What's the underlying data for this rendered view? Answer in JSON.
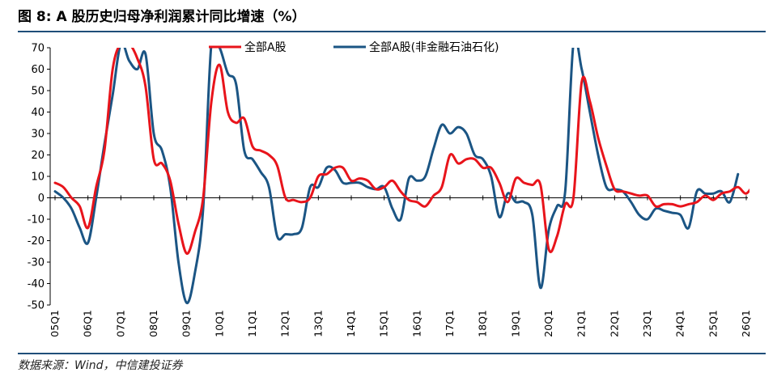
{
  "title": "图 8: A 股历史归母净利润累计同比增速（%）",
  "source": "数据来源：Wind，中信建投证券",
  "chart_data": {
    "type": "line",
    "ylim": [
      -50,
      70
    ],
    "yticks": [
      70,
      60,
      50,
      40,
      30,
      20,
      10,
      0,
      -10,
      -20,
      -30,
      -40,
      -50
    ],
    "x_labels": [
      "05Q1",
      "06Q1",
      "07Q1",
      "08Q1",
      "09Q1",
      "10Q1",
      "11Q1",
      "12Q1",
      "13Q1",
      "14Q1",
      "15Q1",
      "16Q1",
      "17Q1",
      "18Q1",
      "19Q1",
      "20Q1",
      "21Q1",
      "22Q1",
      "23Q1",
      "24Q1",
      "25Q1",
      "26Q1"
    ],
    "legend": [
      "全部A股",
      "全部A股(非金融石油石化)"
    ],
    "series": [
      {
        "name": "全部A股",
        "color": "#e8141b",
        "values": [
          7,
          5,
          0,
          -4,
          -14,
          5,
          22,
          60,
          72,
          72,
          65,
          52,
          18,
          16,
          8,
          -12,
          -26,
          -16,
          0,
          45,
          62,
          40,
          35,
          37,
          24,
          22,
          20,
          15,
          0,
          -1,
          -2,
          0,
          10,
          11,
          14,
          14,
          8,
          9,
          8,
          4,
          5,
          8,
          3,
          -1,
          -2,
          -4,
          1,
          5,
          20,
          16,
          18,
          18,
          14,
          14,
          7,
          -2,
          9,
          7,
          6,
          6,
          -24,
          -18,
          -3,
          0,
          54,
          45,
          28,
          15,
          4,
          3,
          2,
          1,
          1,
          -4,
          -3,
          -3,
          -4,
          -3,
          -2,
          1,
          -1,
          2,
          3,
          5,
          2,
          7
        ]
      },
      {
        "name": "全部A股(非金融石油石化)",
        "color": "#1b5584",
        "values": [
          3,
          0,
          -5,
          -14,
          -21,
          0,
          25,
          48,
          72,
          64,
          60,
          67,
          30,
          22,
          5,
          -30,
          -49,
          -35,
          -5,
          72,
          70,
          58,
          53,
          22,
          18,
          12,
          5,
          -18,
          -17,
          -17,
          -14,
          5,
          5,
          14,
          13,
          7,
          7,
          7,
          5,
          4,
          5,
          -5,
          -10,
          9,
          8,
          10,
          23,
          34,
          30,
          33,
          30,
          20,
          18,
          10,
          -9,
          2,
          -2,
          -2,
          -8,
          -42,
          -15,
          -4,
          3,
          72,
          60,
          40,
          20,
          5,
          4,
          3,
          -2,
          -8,
          -10,
          -5,
          -6,
          -7,
          -8,
          -14,
          3,
          2,
          2,
          3,
          -2,
          11
        ]
      }
    ]
  }
}
